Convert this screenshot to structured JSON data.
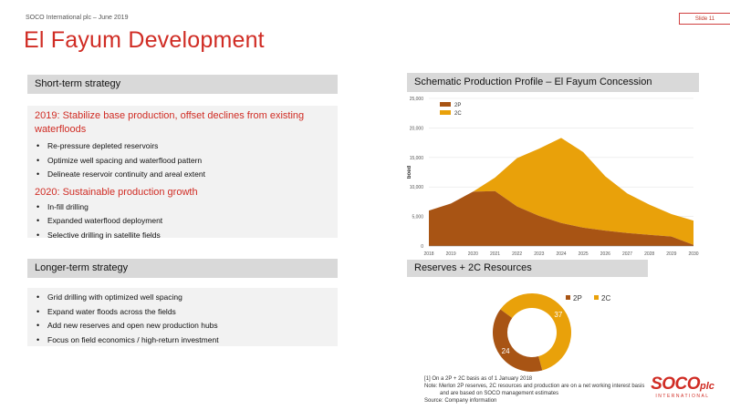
{
  "header": {
    "company_date": "SOCO International plc – June 2019",
    "slide_label": "Slide 11",
    "title": "El Fayum Development"
  },
  "short_term": {
    "heading": "Short-term strategy",
    "group1_title": "2019: Stabilize base production, offset declines from existing waterfloods",
    "group1_items": [
      "Re-pressure depleted reservoirs",
      "Optimize well spacing and waterflood pattern",
      "Delineate reservoir continuity and areal extent"
    ],
    "group2_title": "2020: Sustainable production growth",
    "group2_items": [
      "In-fill drilling",
      "Expanded waterflood deployment",
      "Selective drilling in satellite fields"
    ]
  },
  "longer_term": {
    "heading": "Longer-term strategy",
    "items": [
      "Grid drilling with optimized well spacing",
      "Expand water floods across the fields",
      "Add new reserves and open new production hubs",
      "Focus on field economics / high-return investment"
    ]
  },
  "profile_heading": "Schematic Production Profile – El Fayum Concession",
  "reserves_heading": "Reserves + 2C Resources",
  "footnotes": {
    "line1": "[1]     On a 2P + 2C basis as of 1 January 2018",
    "line2": "Note: Merlon 2P reserves, 2C resources and production are on a net working interest basis",
    "line3": "and are based on SOCO management estimates",
    "line4": "Source: Company information"
  },
  "logo": {
    "main": "SOCO",
    "suffix": "plc",
    "sub": "INTERNATIONAL"
  },
  "colors": {
    "accent_red": "#d02c24",
    "series_2p": "#a85414",
    "series_2c": "#e9a10a",
    "header_grey": "#d9d9d9",
    "panel_grey": "#f2f2f2"
  },
  "chart_data": [
    {
      "type": "area",
      "stacked": true,
      "title": "",
      "ylabel": "boed",
      "xlabel": "",
      "x": [
        "2018",
        "2019",
        "2020",
        "2021",
        "2022",
        "2023",
        "2024",
        "2025",
        "2026",
        "2027",
        "2028",
        "2029",
        "2030"
      ],
      "ylim": [
        0,
        25000
      ],
      "yticks": [
        0,
        5000,
        10000,
        15000,
        20000,
        25000
      ],
      "ytick_labels": [
        "0",
        "5,000",
        "10,000",
        "15,000",
        "20,000",
        "25,000"
      ],
      "grid": true,
      "legend": "top-left",
      "series": [
        {
          "name": "2P",
          "values": [
            6000,
            7200,
            9200,
            9300,
            6700,
            5100,
            3900,
            3100,
            2600,
            2200,
            1900,
            1600,
            200
          ]
        },
        {
          "name": "2C",
          "values": [
            0,
            0,
            0,
            2300,
            8200,
            11400,
            14400,
            12800,
            9200,
            6700,
            5100,
            3800,
            4100
          ]
        }
      ]
    },
    {
      "type": "pie",
      "donut": true,
      "title": "",
      "legend": "top-right",
      "series": [
        {
          "name": "2P",
          "value": 24
        },
        {
          "name": "2C",
          "value": 37
        }
      ]
    }
  ]
}
